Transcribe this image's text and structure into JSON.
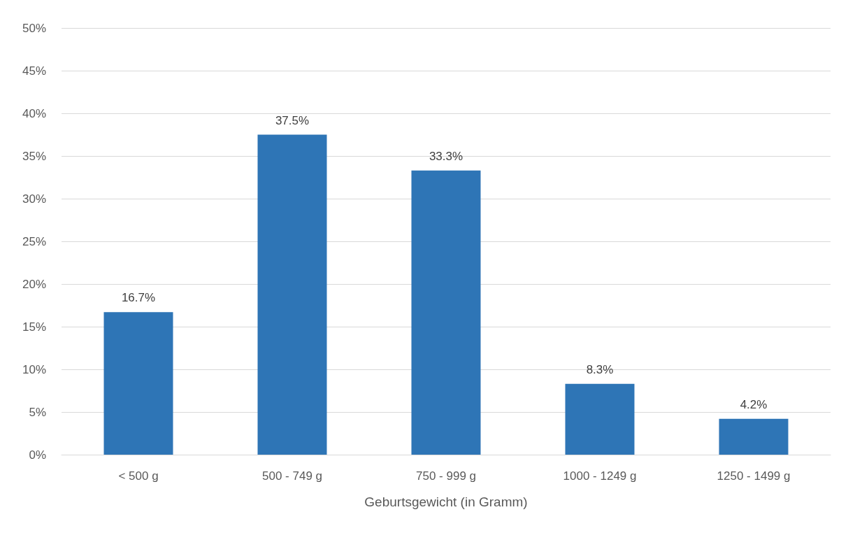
{
  "chart_data": {
    "type": "bar",
    "xlabel": "Geburtsgewicht (in Gramm)",
    "categories": [
      "< 500 g",
      "500 - 749 g",
      "750 - 999 g",
      "1000 - 1249 g",
      "1250 - 1499 g"
    ],
    "values": [
      16.7,
      37.5,
      33.3,
      8.3,
      4.2
    ],
    "value_labels": [
      "16.7%",
      "37.5%",
      "33.3%",
      "8.3%",
      "4.2%"
    ],
    "color": "#2e75b6",
    "ylim": [
      0,
      50
    ],
    "yticks": [
      {
        "value": 0,
        "label": "0%"
      },
      {
        "value": 5,
        "label": "5%"
      },
      {
        "value": 10,
        "label": "10%"
      },
      {
        "value": 15,
        "label": "15%"
      },
      {
        "value": 20,
        "label": "20%"
      },
      {
        "value": 25,
        "label": "25%"
      },
      {
        "value": 30,
        "label": "30%"
      },
      {
        "value": 35,
        "label": "35%"
      },
      {
        "value": 40,
        "label": "40%"
      },
      {
        "value": 45,
        "label": "45%"
      },
      {
        "value": 50,
        "label": "50%"
      }
    ],
    "grid": "y"
  }
}
